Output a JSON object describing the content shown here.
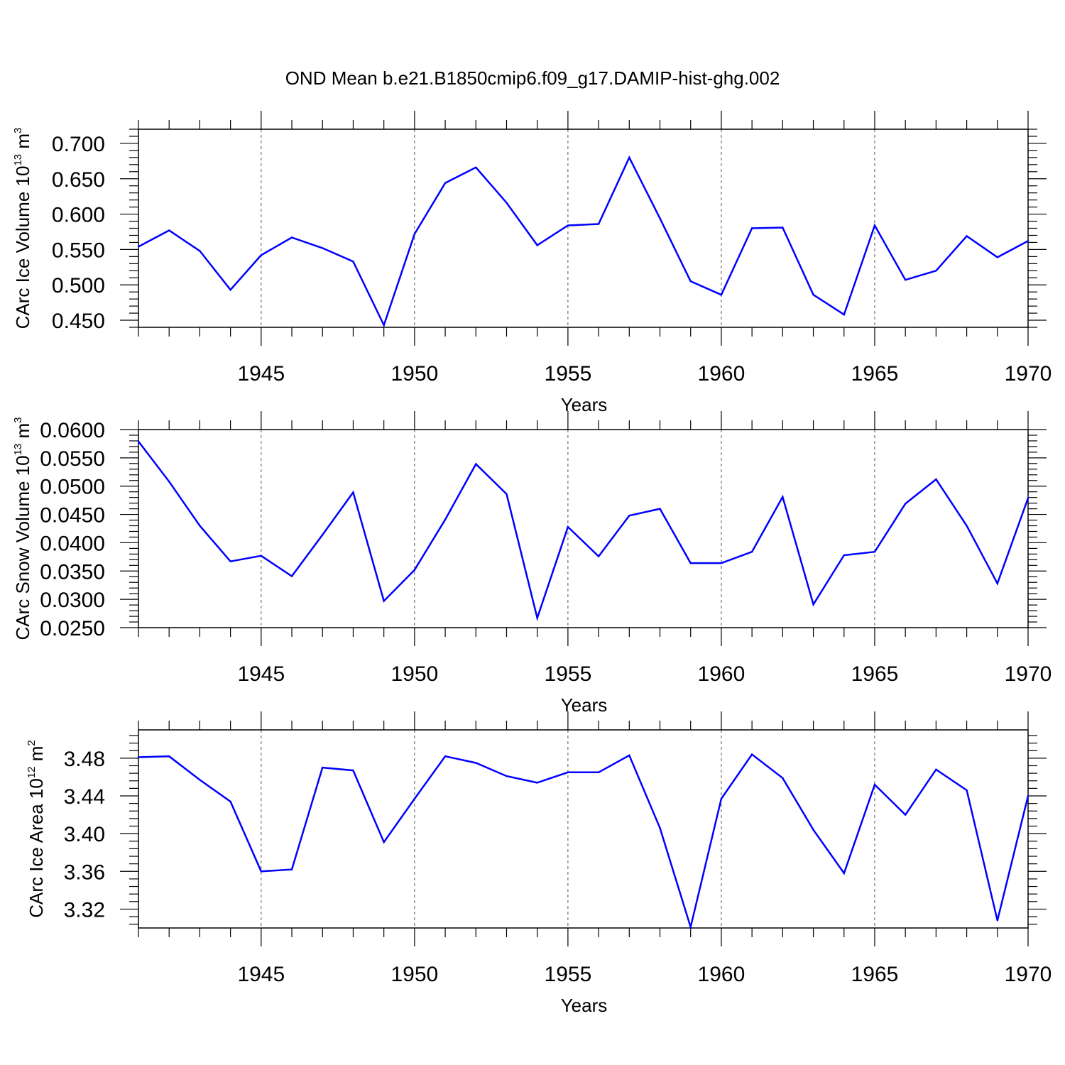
{
  "title": "OND Mean b.e21.B1850cmip6.f09_g17.DAMIP-hist-ghg.002",
  "line_color": "#0000ff",
  "chart_data": [
    {
      "type": "line",
      "ylabel": {
        "base": "CArc Ice Volume 10",
        "exponent": "13",
        "unit": " m",
        "unit_exponent": "3"
      },
      "xlabel": "Years",
      "xlim": [
        1941,
        1970
      ],
      "ylim": [
        0.44,
        0.72
      ],
      "x_tick_labels": [
        "1945",
        "1950",
        "1955",
        "1960",
        "1965",
        "1970"
      ],
      "x_ticks": [
        1945,
        1950,
        1955,
        1960,
        1965,
        1970
      ],
      "y_tick_labels": [
        "0.450",
        "0.500",
        "0.550",
        "0.600",
        "0.650",
        "0.700"
      ],
      "y_ticks": [
        0.45,
        0.5,
        0.55,
        0.6,
        0.65,
        0.7
      ],
      "grid": "vertical dashed at major x ticks",
      "x": [
        1941,
        1942,
        1943,
        1944,
        1945,
        1946,
        1947,
        1948,
        1949,
        1950,
        1951,
        1952,
        1953,
        1954,
        1955,
        1956,
        1957,
        1958,
        1959,
        1960,
        1961,
        1962,
        1963,
        1964,
        1965,
        1966,
        1967,
        1968,
        1969,
        1970
      ],
      "values": [
        0.554,
        0.577,
        0.548,
        0.493,
        0.542,
        0.567,
        0.552,
        0.533,
        0.443,
        0.572,
        0.644,
        0.666,
        0.616,
        0.556,
        0.584,
        0.586,
        0.68,
        0.594,
        0.505,
        0.486,
        0.58,
        0.581,
        0.486,
        0.458,
        0.584,
        0.507,
        0.52,
        0.569,
        0.539,
        0.562
      ]
    },
    {
      "type": "line",
      "ylabel": {
        "base": "CArc Snow Volume 10",
        "exponent": "13",
        "unit": " m",
        "unit_exponent": "3"
      },
      "xlabel": "Years",
      "xlim": [
        1941,
        1970
      ],
      "ylim": [
        0.025,
        0.06
      ],
      "x_tick_labels": [
        "1945",
        "1950",
        "1955",
        "1960",
        "1965",
        "1970"
      ],
      "x_ticks": [
        1945,
        1950,
        1955,
        1960,
        1965,
        1970
      ],
      "y_tick_labels": [
        "0.0250",
        "0.0300",
        "0.0350",
        "0.0400",
        "0.0450",
        "0.0500",
        "0.0550",
        "0.0600"
      ],
      "y_ticks": [
        0.025,
        0.03,
        0.035,
        0.04,
        0.045,
        0.05,
        0.055,
        0.06
      ],
      "grid": "vertical dashed at major x ticks",
      "x": [
        1941,
        1942,
        1943,
        1944,
        1945,
        1946,
        1947,
        1948,
        1949,
        1950,
        1951,
        1952,
        1953,
        1954,
        1955,
        1956,
        1957,
        1958,
        1959,
        1960,
        1961,
        1962,
        1963,
        1964,
        1965,
        1966,
        1967,
        1968,
        1969,
        1970
      ],
      "values": [
        0.0579,
        0.0508,
        0.043,
        0.0367,
        0.0377,
        0.0341,
        0.0414,
        0.0489,
        0.0297,
        0.0352,
        0.0441,
        0.0539,
        0.0486,
        0.0267,
        0.0428,
        0.0376,
        0.0448,
        0.046,
        0.0364,
        0.0364,
        0.0384,
        0.0481,
        0.0291,
        0.0378,
        0.0384,
        0.0469,
        0.0512,
        0.043,
        0.0328,
        0.0479
      ]
    },
    {
      "type": "line",
      "ylabel": {
        "base": "CArc Ice Area 10",
        "exponent": "12",
        "unit": " m",
        "unit_exponent": "2"
      },
      "xlabel": "Years",
      "xlim": [
        1941,
        1970
      ],
      "ylim": [
        3.3,
        3.51
      ],
      "x_tick_labels": [
        "1945",
        "1950",
        "1955",
        "1960",
        "1965",
        "1970"
      ],
      "x_ticks": [
        1945,
        1950,
        1955,
        1960,
        1965,
        1970
      ],
      "y_tick_labels": [
        "3.32",
        "3.36",
        "3.40",
        "3.44",
        "3.48"
      ],
      "y_ticks": [
        3.32,
        3.36,
        3.4,
        3.44,
        3.48
      ],
      "grid": "vertical dashed at major x ticks",
      "x": [
        1941,
        1942,
        1943,
        1944,
        1945,
        1946,
        1947,
        1948,
        1949,
        1950,
        1951,
        1952,
        1953,
        1954,
        1955,
        1956,
        1957,
        1958,
        1959,
        1960,
        1961,
        1962,
        1963,
        1964,
        1965,
        1966,
        1967,
        1968,
        1969,
        1970
      ],
      "values": [
        3.481,
        3.482,
        3.457,
        3.434,
        3.36,
        3.362,
        3.47,
        3.467,
        3.391,
        3.437,
        3.482,
        3.475,
        3.461,
        3.454,
        3.465,
        3.465,
        3.483,
        3.406,
        3.301,
        3.437,
        3.484,
        3.459,
        3.404,
        3.358,
        3.452,
        3.42,
        3.468,
        3.446,
        3.308,
        3.44
      ]
    }
  ]
}
